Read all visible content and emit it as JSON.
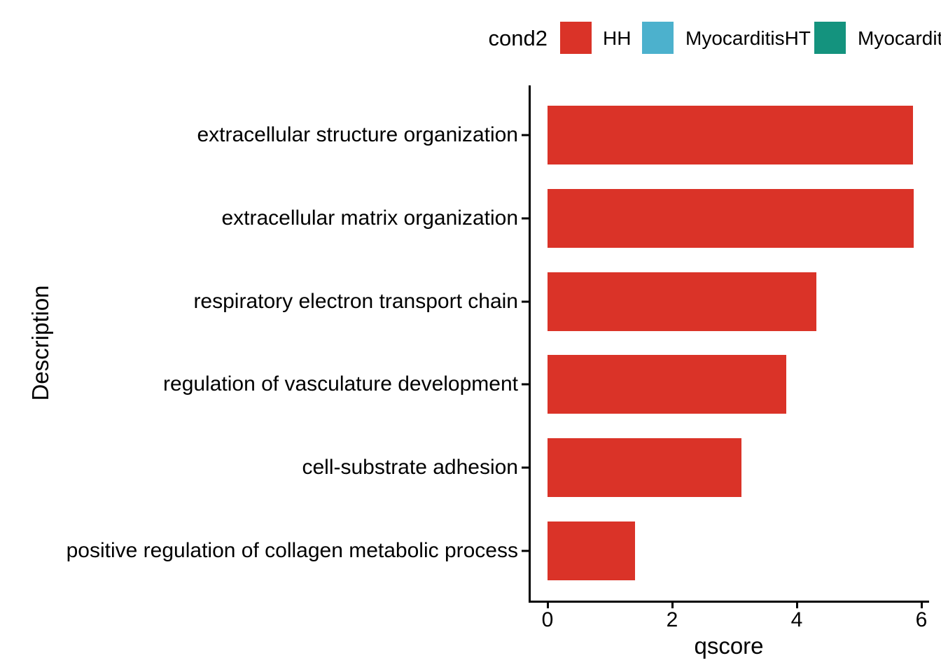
{
  "figure": {
    "background": "#ffffff",
    "axis_color": "#000000",
    "text_color": "#000000"
  },
  "chart_data": {
    "type": "bar",
    "orientation": "horizontal",
    "title": "",
    "xlabel": "qscore",
    "ylabel": "Description",
    "categories": [
      "extracellular structure organization",
      "extracellular matrix organization",
      "respiratory electron transport chain",
      "regulation of vasculature development",
      "cell-substrate adhesion",
      "positive regulation of collagen metabolic process"
    ],
    "values": [
      5.86,
      5.88,
      4.32,
      3.83,
      3.11,
      1.4
    ],
    "series_fill_group": "HH",
    "bar_color": "#da3328",
    "xticks": [
      0,
      2,
      4,
      6
    ],
    "xlim": [
      -0.29,
      6.13
    ],
    "grid": false,
    "legend": {
      "title": "cond2",
      "position": "top",
      "entries": [
        {
          "label": "HH",
          "color": "#da3328"
        },
        {
          "label": "MyocarditisHT",
          "color": "#4cb1cd"
        },
        {
          "label": "Myocarditis",
          "color": "#14937e"
        }
      ]
    }
  }
}
